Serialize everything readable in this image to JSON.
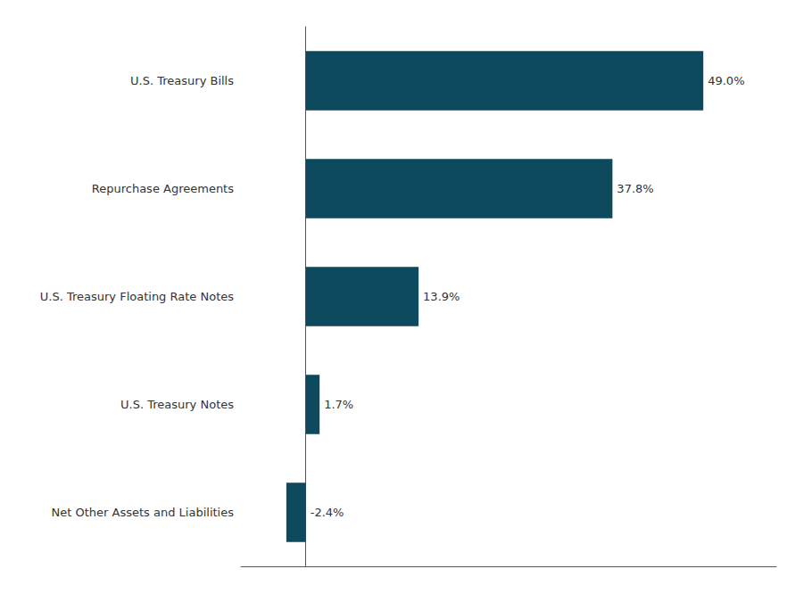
{
  "chart_data": {
    "type": "bar",
    "orientation": "horizontal",
    "categories": [
      "Net Other Assets and Liabilities",
      "U.S. Treasury Notes",
      "U.S. Treasury Floating Rate Notes",
      "Repurchase Agreements",
      "U.S. Treasury Bills"
    ],
    "values": [
      -2.4,
      1.7,
      13.9,
      37.8,
      49.0
    ],
    "value_labels": [
      "-2.4%",
      "1.7%",
      "13.9%",
      "37.8%",
      "49.0%"
    ],
    "color": "#0d4a5e",
    "xlim": [
      -8,
      58
    ],
    "data_labels": true,
    "grid": false,
    "tick_labels": "y"
  }
}
